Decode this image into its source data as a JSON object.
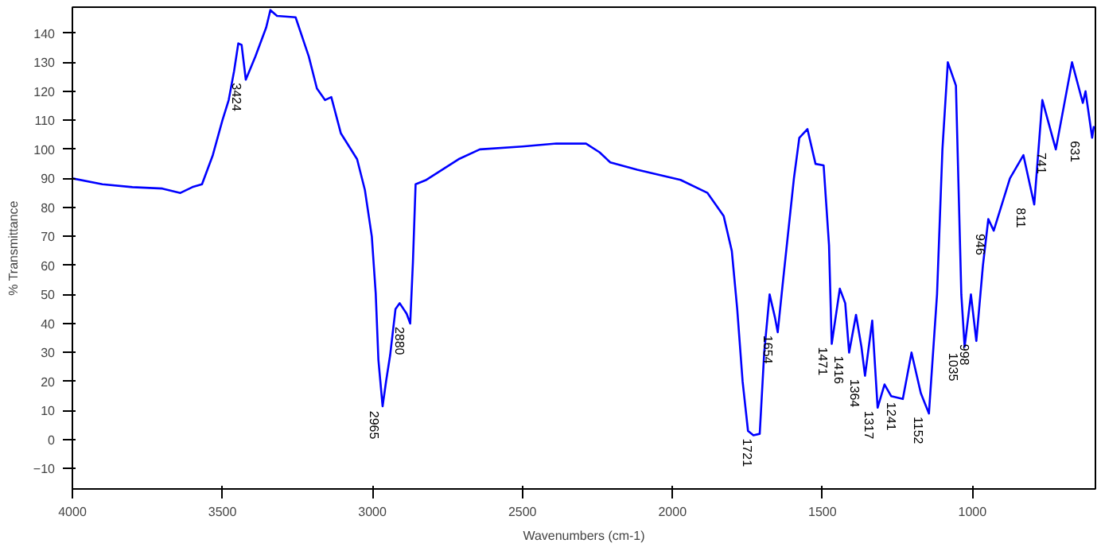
{
  "chart_data": {
    "type": "line",
    "xlabel": "Wavenumbers (cm-1)",
    "ylabel": "% Transmittance",
    "xlim": [
      4000,
      590
    ],
    "ylim": [
      -17,
      149
    ],
    "xticks": [
      4000,
      3500,
      3000,
      2500,
      2000,
      1500,
      1000
    ],
    "yticks": [
      -10,
      0,
      10,
      20,
      30,
      40,
      50,
      60,
      70,
      80,
      90,
      100,
      110,
      120,
      130,
      140
    ],
    "grid": false,
    "marker": "none",
    "line_style": "solid",
    "series": [
      {
        "color": "#0000ff",
        "x": [
          4000,
          3900,
          3800,
          3700,
          3640,
          3600,
          3568,
          3532,
          3500,
          3479,
          3461,
          3447,
          3436,
          3422,
          3390,
          3354,
          3340,
          3318,
          3256,
          3212,
          3185,
          3158,
          3137,
          3105,
          3051,
          3025,
          3002,
          2989,
          2980,
          2966,
          2954,
          2941,
          2923,
          2909,
          2886,
          2874,
          2865,
          2856,
          2820,
          2767,
          2713,
          2642,
          2500,
          2387,
          2288,
          2243,
          2207,
          2117,
          1973,
          1883,
          1829,
          1802,
          1784,
          1766,
          1748,
          1730,
          1709,
          1694,
          1676,
          1658,
          1649,
          1631,
          1595,
          1577,
          1550,
          1523,
          1496,
          1478,
          1469,
          1442,
          1424,
          1411,
          1388,
          1370,
          1358,
          1334,
          1316,
          1293,
          1271,
          1232,
          1203,
          1172,
          1145,
          1118,
          1100,
          1082,
          1055,
          1037,
          1026,
          1005,
          987,
          965,
          947,
          929,
          875,
          830,
          794,
          767,
          722,
          668,
          632,
          623,
          601,
          595
        ],
        "values": [
          90,
          88,
          87,
          86.5,
          85,
          87,
          88,
          98,
          110,
          117,
          127,
          136.5,
          136,
          124,
          132,
          142,
          148,
          146,
          145.5,
          132,
          121,
          117,
          118,
          105.5,
          96.6,
          86,
          70,
          50.5,
          27.5,
          11.5,
          20.4,
          29,
          45,
          47,
          43.4,
          40,
          61,
          88,
          89.5,
          93,
          96.6,
          100,
          101,
          102,
          102,
          99,
          95.5,
          93,
          89.5,
          85,
          77,
          65,
          45,
          20,
          3,
          1.5,
          2,
          30,
          50,
          42,
          37,
          55,
          90,
          104,
          107,
          95,
          94.5,
          67,
          33,
          52,
          47,
          30,
          43,
          32,
          22,
          41,
          11,
          19,
          15,
          14,
          30,
          16,
          9,
          50,
          100,
          130,
          122,
          50,
          32,
          50,
          34,
          60,
          76,
          72,
          90,
          98,
          81,
          117,
          100,
          130,
          116,
          120,
          104,
          108
        ]
      }
    ],
    "annotations": [
      {
        "text": "3424",
        "x": 3424,
        "y": 124
      },
      {
        "text": "2965",
        "x": 2965,
        "y": 11
      },
      {
        "text": "2880",
        "x": 2880,
        "y": 40
      },
      {
        "text": "1721",
        "x": 1721,
        "y": 1.5
      },
      {
        "text": "1654",
        "x": 1654,
        "y": 37
      },
      {
        "text": "1471",
        "x": 1471,
        "y": 33
      },
      {
        "text": "1416",
        "x": 1416,
        "y": 30
      },
      {
        "text": "1364",
        "x": 1364,
        "y": 22
      },
      {
        "text": "1317",
        "x": 1317,
        "y": 11
      },
      {
        "text": "1241",
        "x": 1241,
        "y": 14
      },
      {
        "text": "1152",
        "x": 1152,
        "y": 9
      },
      {
        "text": "1035",
        "x": 1035,
        "y": 31
      },
      {
        "text": "998",
        "x": 998,
        "y": 34
      },
      {
        "text": "946",
        "x": 946,
        "y": 72
      },
      {
        "text": "811",
        "x": 811,
        "y": 81
      },
      {
        "text": "741",
        "x": 741,
        "y": 100
      },
      {
        "text": "631",
        "x": 631,
        "y": 104
      }
    ]
  }
}
